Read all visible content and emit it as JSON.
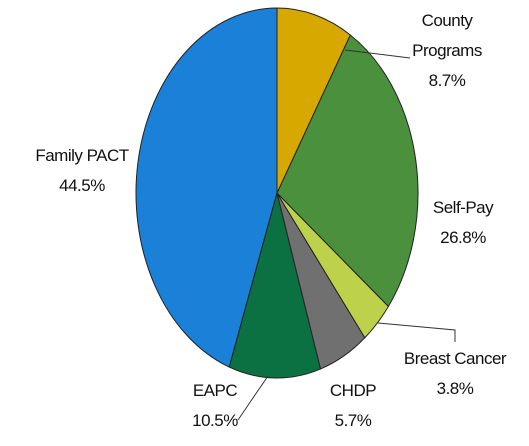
{
  "chart_data": {
    "type": "pie",
    "categories": [
      "County Programs",
      "Self-Pay",
      "Breast Cancer",
      "CHDP",
      "EAPC",
      "Family PACT"
    ],
    "values": [
      8.7,
      26.8,
      3.8,
      5.7,
      10.5,
      44.5
    ],
    "value_labels": [
      "8.7%",
      "26.8%",
      "3.8%",
      "5.7%",
      "10.5%",
      "44.5%"
    ],
    "colors": [
      "#d6a800",
      "#4b913d",
      "#bdd14b",
      "#707070",
      "#0b7142",
      "#1b80d8"
    ]
  }
}
